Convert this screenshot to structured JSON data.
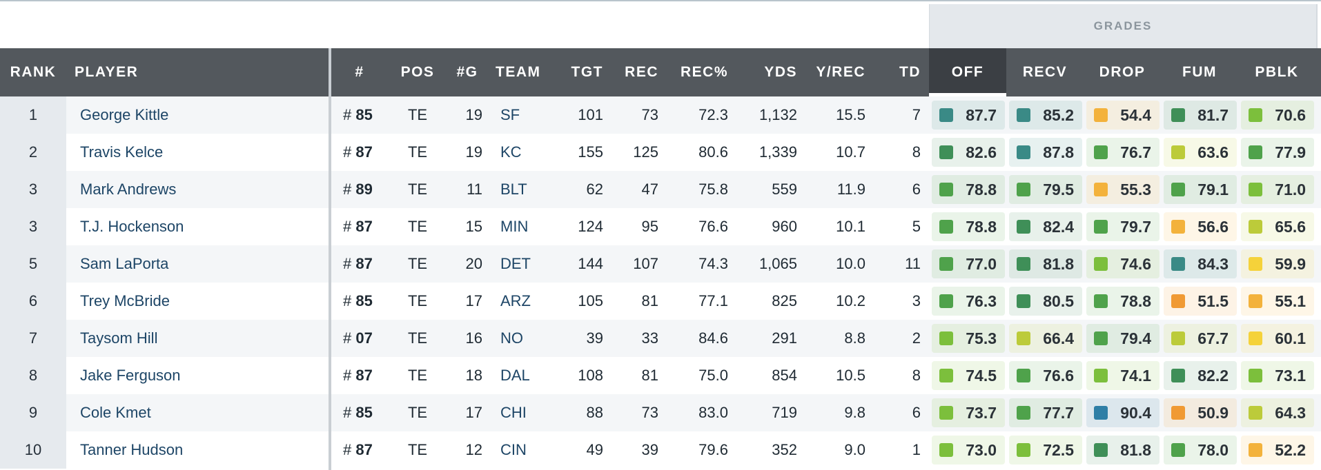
{
  "header": {
    "grades_label": "GRADES",
    "columns": {
      "rank": "RANK",
      "player": "PLAYER",
      "jersey": "#",
      "pos": "POS",
      "games": "#G",
      "team": "TEAM",
      "tgt": "TGT",
      "rec": "REC",
      "rec_pct": "REC%",
      "yds": "YDS",
      "y_rec": "Y/REC",
      "td": "TD",
      "off": "OFF",
      "recv": "RECV",
      "drop": "DROP",
      "fum": "FUM",
      "pblk": "PBLK"
    }
  },
  "rows": [
    {
      "rank": "1",
      "player": "George Kittle",
      "hash": "#",
      "jersey": "85",
      "pos": "TE",
      "g": "19",
      "team": "SF",
      "tgt": "101",
      "rec": "73",
      "rec_pct": "72.3",
      "yds": "1,132",
      "y_rec": "15.5",
      "td": "7",
      "grades": {
        "off": "87.7",
        "recv": "85.2",
        "drop": "54.4",
        "fum": "81.7",
        "pblk": "70.6"
      }
    },
    {
      "rank": "2",
      "player": "Travis Kelce",
      "hash": "#",
      "jersey": "87",
      "pos": "TE",
      "g": "19",
      "team": "KC",
      "tgt": "155",
      "rec": "125",
      "rec_pct": "80.6",
      "yds": "1,339",
      "y_rec": "10.7",
      "td": "8",
      "grades": {
        "off": "82.6",
        "recv": "87.8",
        "drop": "76.7",
        "fum": "63.6",
        "pblk": "77.9"
      }
    },
    {
      "rank": "3",
      "player": "Mark Andrews",
      "hash": "#",
      "jersey": "89",
      "pos": "TE",
      "g": "11",
      "team": "BLT",
      "tgt": "62",
      "rec": "47",
      "rec_pct": "75.8",
      "yds": "559",
      "y_rec": "11.9",
      "td": "6",
      "grades": {
        "off": "78.8",
        "recv": "79.5",
        "drop": "55.3",
        "fum": "79.1",
        "pblk": "71.0"
      }
    },
    {
      "rank": "3",
      "player": "T.J. Hockenson",
      "hash": "#",
      "jersey": "87",
      "pos": "TE",
      "g": "15",
      "team": "MIN",
      "tgt": "124",
      "rec": "95",
      "rec_pct": "76.6",
      "yds": "960",
      "y_rec": "10.1",
      "td": "5",
      "grades": {
        "off": "78.8",
        "recv": "82.4",
        "drop": "79.7",
        "fum": "56.6",
        "pblk": "65.6"
      }
    },
    {
      "rank": "5",
      "player": "Sam LaPorta",
      "hash": "#",
      "jersey": "87",
      "pos": "TE",
      "g": "20",
      "team": "DET",
      "tgt": "144",
      "rec": "107",
      "rec_pct": "74.3",
      "yds": "1,065",
      "y_rec": "10.0",
      "td": "11",
      "grades": {
        "off": "77.0",
        "recv": "81.8",
        "drop": "74.6",
        "fum": "84.3",
        "pblk": "59.9"
      }
    },
    {
      "rank": "6",
      "player": "Trey McBride",
      "hash": "#",
      "jersey": "85",
      "pos": "TE",
      "g": "17",
      "team": "ARZ",
      "tgt": "105",
      "rec": "81",
      "rec_pct": "77.1",
      "yds": "825",
      "y_rec": "10.2",
      "td": "3",
      "grades": {
        "off": "76.3",
        "recv": "80.5",
        "drop": "78.8",
        "fum": "51.5",
        "pblk": "55.1"
      }
    },
    {
      "rank": "7",
      "player": "Taysom Hill",
      "hash": "#",
      "jersey": "07",
      "pos": "TE",
      "g": "16",
      "team": "NO",
      "tgt": "39",
      "rec": "33",
      "rec_pct": "84.6",
      "yds": "291",
      "y_rec": "8.8",
      "td": "2",
      "grades": {
        "off": "75.3",
        "recv": "66.4",
        "drop": "79.4",
        "fum": "67.7",
        "pblk": "60.1"
      }
    },
    {
      "rank": "8",
      "player": "Jake Ferguson",
      "hash": "#",
      "jersey": "87",
      "pos": "TE",
      "g": "18",
      "team": "DAL",
      "tgt": "108",
      "rec": "81",
      "rec_pct": "75.0",
      "yds": "854",
      "y_rec": "10.5",
      "td": "8",
      "grades": {
        "off": "74.5",
        "recv": "76.6",
        "drop": "74.1",
        "fum": "82.2",
        "pblk": "73.1"
      }
    },
    {
      "rank": "9",
      "player": "Cole Kmet",
      "hash": "#",
      "jersey": "85",
      "pos": "TE",
      "g": "17",
      "team": "CHI",
      "tgt": "88",
      "rec": "73",
      "rec_pct": "83.0",
      "yds": "719",
      "y_rec": "9.8",
      "td": "6",
      "grades": {
        "off": "73.7",
        "recv": "77.7",
        "drop": "90.4",
        "fum": "50.9",
        "pblk": "64.3"
      }
    },
    {
      "rank": "10",
      "player": "Tanner Hudson",
      "hash": "#",
      "jersey": "87",
      "pos": "TE",
      "g": "12",
      "team": "CIN",
      "tgt": "49",
      "rec": "39",
      "rec_pct": "79.6",
      "yds": "352",
      "y_rec": "9.0",
      "td": "1",
      "grades": {
        "off": "73.0",
        "recv": "72.5",
        "drop": "81.8",
        "fum": "78.0",
        "pblk": "52.2"
      }
    }
  ],
  "grade_colors": {
    "elite_blue": "#2f7fa6",
    "teal": "#3a8a86",
    "dark_green": "#3f8f58",
    "green": "#4fa24b",
    "light_green": "#7cbf3c",
    "yellow_green": "#bccb3a",
    "yellow": "#f5d23a",
    "orange": "#f3b23c",
    "dark_orange": "#f09a34"
  }
}
